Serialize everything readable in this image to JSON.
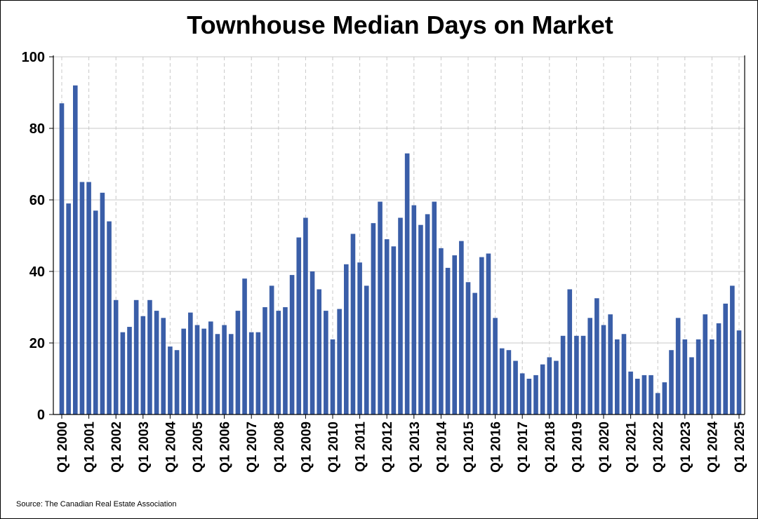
{
  "chart_data": {
    "type": "bar",
    "title": "Townhouse Median Days on Market",
    "source": "Source: The Canadian Real Estate Association",
    "xlabel": "",
    "ylabel": "",
    "ylim": [
      0,
      100
    ],
    "yticks": [
      0,
      20,
      40,
      60,
      80,
      100
    ],
    "grid": true,
    "bar_color": "#3a5ea8",
    "tick_labels": [
      "Q1 2000",
      "Q1 2001",
      "Q1 2002",
      "Q1 2003",
      "Q1 2004",
      "Q1 2005",
      "Q1 2006",
      "Q1 2007",
      "Q1 2008",
      "Q1 2009",
      "Q1 2010",
      "Q1 2011",
      "Q1 2012",
      "Q1 2013",
      "Q1 2014",
      "Q1 2015",
      "Q1 2016",
      "Q1 2017",
      "Q1 2018",
      "Q1 2019",
      "Q1 2020",
      "Q1 2021",
      "Q1 2022",
      "Q1 2023",
      "Q1 2024",
      "Q1 2025"
    ],
    "categories": [
      "Q1 2000",
      "Q2 2000",
      "Q3 2000",
      "Q4 2000",
      "Q1 2001",
      "Q2 2001",
      "Q3 2001",
      "Q4 2001",
      "Q1 2002",
      "Q2 2002",
      "Q3 2002",
      "Q4 2002",
      "Q1 2003",
      "Q2 2003",
      "Q3 2003",
      "Q4 2003",
      "Q1 2004",
      "Q2 2004",
      "Q3 2004",
      "Q4 2004",
      "Q1 2005",
      "Q2 2005",
      "Q3 2005",
      "Q4 2005",
      "Q1 2006",
      "Q2 2006",
      "Q3 2006",
      "Q4 2006",
      "Q1 2007",
      "Q2 2007",
      "Q3 2007",
      "Q4 2007",
      "Q1 2008",
      "Q2 2008",
      "Q3 2008",
      "Q4 2008",
      "Q1 2009",
      "Q2 2009",
      "Q3 2009",
      "Q4 2009",
      "Q1 2010",
      "Q2 2010",
      "Q3 2010",
      "Q4 2010",
      "Q1 2011",
      "Q2 2011",
      "Q3 2011",
      "Q4 2011",
      "Q1 2012",
      "Q2 2012",
      "Q3 2012",
      "Q4 2012",
      "Q1 2013",
      "Q2 2013",
      "Q3 2013",
      "Q4 2013",
      "Q1 2014",
      "Q2 2014",
      "Q3 2014",
      "Q4 2014",
      "Q1 2015",
      "Q2 2015",
      "Q3 2015",
      "Q4 2015",
      "Q1 2016",
      "Q2 2016",
      "Q3 2016",
      "Q4 2016",
      "Q1 2017",
      "Q2 2017",
      "Q3 2017",
      "Q4 2017",
      "Q1 2018",
      "Q2 2018",
      "Q3 2018",
      "Q4 2018",
      "Q1 2019",
      "Q2 2019",
      "Q3 2019",
      "Q4 2019",
      "Q1 2020",
      "Q2 2020",
      "Q3 2020",
      "Q4 2020",
      "Q1 2021",
      "Q2 2021",
      "Q3 2021",
      "Q4 2021",
      "Q1 2022",
      "Q2 2022",
      "Q3 2022",
      "Q4 2022",
      "Q1 2023",
      "Q2 2023",
      "Q3 2023",
      "Q4 2023",
      "Q1 2024",
      "Q2 2024",
      "Q3 2024",
      "Q4 2024",
      "Q1 2025"
    ],
    "values": [
      87,
      59,
      92,
      65,
      65,
      57,
      62,
      54,
      32,
      23,
      24.5,
      32,
      27.5,
      32,
      29,
      27,
      19,
      18,
      24,
      28.5,
      25,
      24,
      26,
      22.5,
      25,
      22.5,
      29,
      38,
      23,
      23,
      30,
      36,
      29,
      30,
      39,
      49.5,
      55,
      40,
      35,
      29,
      21,
      29.5,
      42,
      50.5,
      42.5,
      36,
      53.5,
      59.5,
      49,
      47,
      55,
      73,
      58.5,
      53,
      56,
      59.5,
      46.5,
      41,
      44.5,
      48.5,
      37,
      34,
      44,
      45,
      27,
      18.5,
      18,
      15,
      11.5,
      10,
      11,
      14,
      16,
      15,
      22,
      35,
      22,
      22,
      27,
      32.5,
      25,
      28,
      21,
      22.5,
      12,
      10,
      11,
      11,
      6,
      9,
      18,
      27,
      21,
      16,
      21,
      28,
      21,
      25.5,
      31,
      36,
      23.5
    ]
  }
}
